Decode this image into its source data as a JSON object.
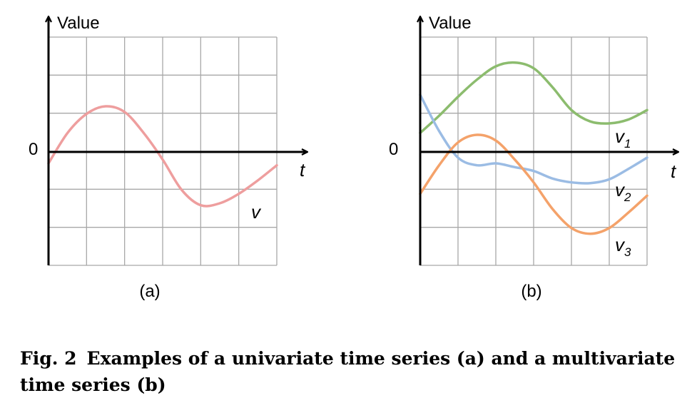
{
  "chart_data": [
    {
      "type": "line",
      "panel_label": "(a)",
      "ylabel": "Value",
      "xlabel": "t",
      "y_tick_label": "0",
      "x_range": [
        0,
        6
      ],
      "y_range": [
        -3,
        3
      ],
      "grid": true,
      "series": [
        {
          "name": "v",
          "color": "#ee9e9e",
          "x": [
            0,
            0.5,
            1,
            1.5,
            2,
            2.5,
            3,
            3.5,
            4,
            4.5,
            5,
            5.5,
            6
          ],
          "y": [
            -0.3,
            0.5,
            1.0,
            1.2,
            1.05,
            0.5,
            -0.2,
            -1.0,
            -1.4,
            -1.35,
            -1.1,
            -0.75,
            -0.35
          ]
        }
      ]
    },
    {
      "type": "line",
      "panel_label": "(b)",
      "ylabel": "Value",
      "xlabel": "t",
      "y_tick_label": "0",
      "x_range": [
        0,
        6
      ],
      "y_range": [
        -3,
        3
      ],
      "grid": true,
      "series": [
        {
          "name": "v1",
          "color": "#8cbc6e",
          "x": [
            0,
            0.5,
            1,
            1.5,
            2,
            2.5,
            3,
            3.5,
            4,
            4.5,
            5,
            5.5,
            6
          ],
          "y": [
            0.5,
            0.95,
            1.45,
            1.9,
            2.25,
            2.35,
            2.2,
            1.7,
            1.1,
            0.8,
            0.75,
            0.85,
            1.1
          ]
        },
        {
          "name": "v2",
          "color": "#9bbce4",
          "x": [
            0,
            0.5,
            1,
            1.5,
            2,
            2.5,
            3,
            3.5,
            4,
            4.5,
            5,
            5.5,
            6
          ],
          "y": [
            1.5,
            0.55,
            -0.15,
            -0.35,
            -0.3,
            -0.4,
            -0.5,
            -0.7,
            -0.8,
            -0.82,
            -0.72,
            -0.45,
            -0.15
          ]
        },
        {
          "name": "v3",
          "color": "#f4a26a",
          "x": [
            0,
            0.5,
            1,
            1.5,
            2,
            2.5,
            3,
            3.5,
            4,
            4.5,
            5,
            5.5,
            6
          ],
          "y": [
            -1.1,
            -0.35,
            0.25,
            0.45,
            0.3,
            -0.2,
            -0.8,
            -1.5,
            -2.0,
            -2.15,
            -2.0,
            -1.6,
            -1.15
          ]
        }
      ],
      "series_labels": [
        {
          "base": "v",
          "sub": "1"
        },
        {
          "base": "v",
          "sub": "2"
        },
        {
          "base": "v",
          "sub": "3"
        }
      ]
    }
  ],
  "caption": {
    "label": "Fig. 2",
    "text": "Examples of a univariate time series (a) and a multivariate time series (b)"
  }
}
